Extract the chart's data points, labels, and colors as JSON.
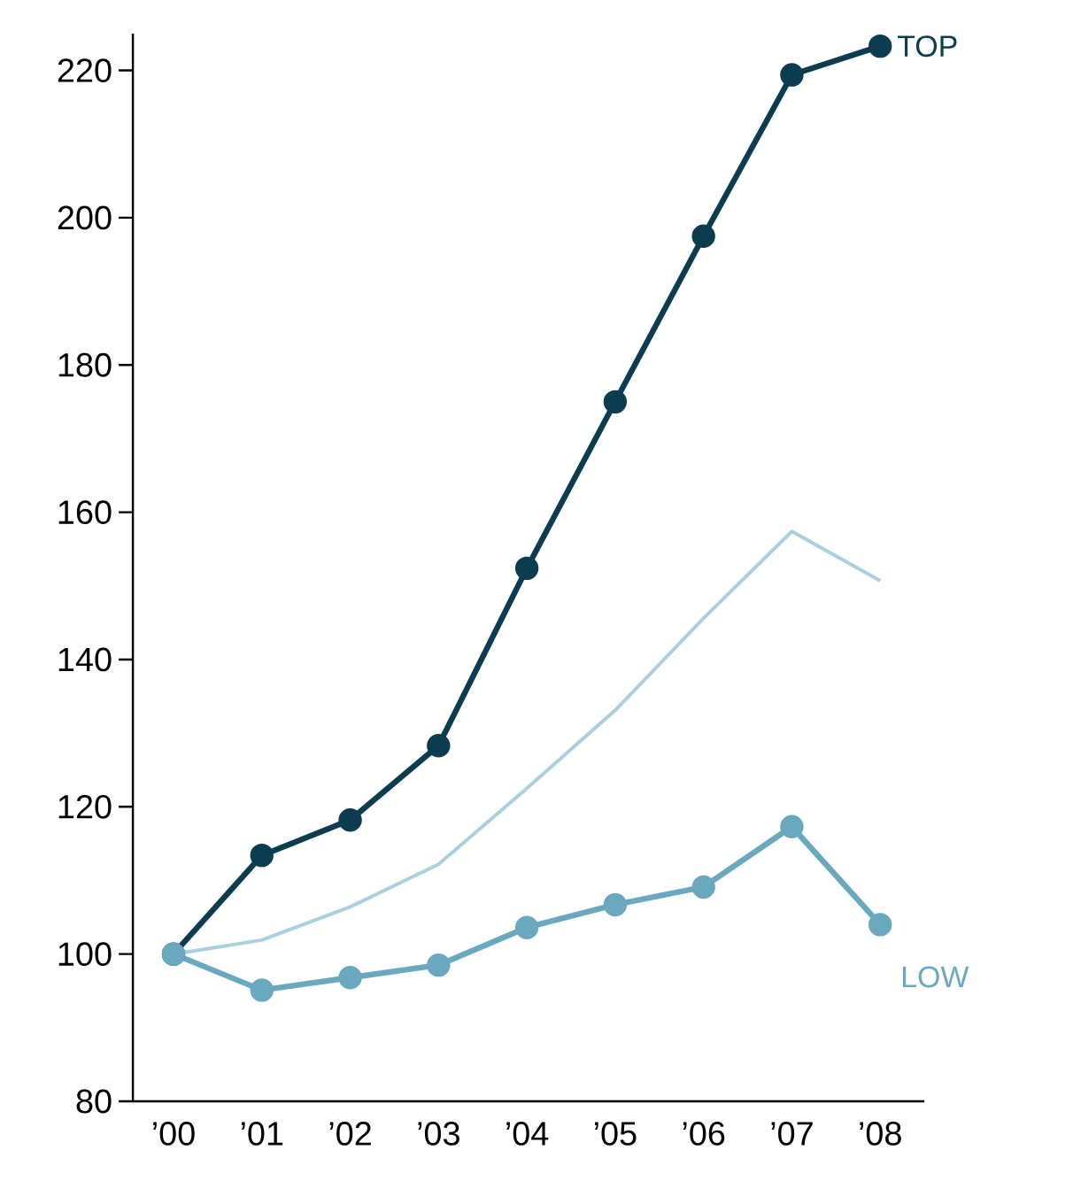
{
  "chart_data": {
    "type": "line",
    "categories": [
      "’00",
      "’01",
      "’02",
      "’03",
      "’04",
      "’05",
      "’06",
      "’07",
      "’08"
    ],
    "series": [
      {
        "name": "TOP",
        "color": "#0b3c50",
        "marker": "circle",
        "values": [
          100,
          113.4,
          118.2,
          128.3,
          152.4,
          175,
          197.5,
          219.4,
          223.3
        ]
      },
      {
        "color": "#a9d0dc",
        "marker": "none",
        "values": [
          100,
          101.9,
          106.4,
          112.2,
          122.5,
          133.1,
          145.6,
          157.4,
          150.7
        ]
      },
      {
        "name": "LOW",
        "color": "#6aa8c0",
        "marker": "circle",
        "values": [
          100,
          95.1,
          96.8,
          98.5,
          103.6,
          106.7,
          109.1,
          117.3,
          104
        ]
      }
    ],
    "ylim": [
      80,
      225
    ],
    "yticks": [
      80,
      100,
      120,
      140,
      160,
      180,
      200,
      220
    ],
    "line_style": "solid"
  }
}
